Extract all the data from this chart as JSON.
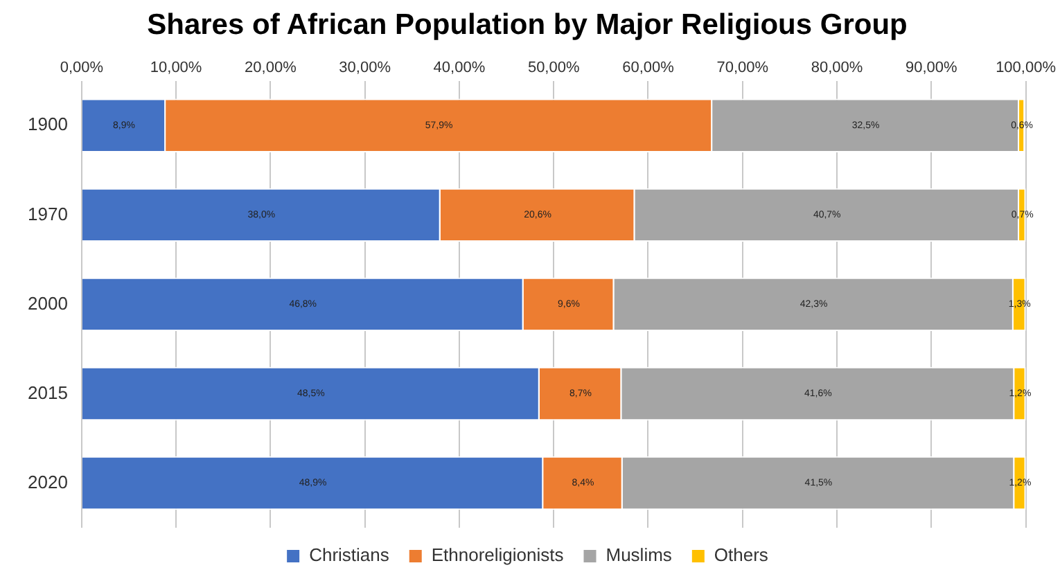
{
  "chart_data": {
    "type": "bar",
    "title": "Shares of African Population by Major Religious Group",
    "orientation": "horizontal",
    "stacked": true,
    "categories": [
      "1900",
      "1970",
      "2000",
      "2015",
      "2020"
    ],
    "series": [
      {
        "name": "Christians",
        "color": "#4472c4",
        "values": [
          8.9,
          38.0,
          46.8,
          48.5,
          48.9
        ],
        "value_labels": [
          "8,9%",
          "38,0%",
          "46,8%",
          "48,5%",
          "48,9%"
        ]
      },
      {
        "name": "Ethnoreligionists",
        "color": "#ed7d31",
        "values": [
          57.9,
          20.6,
          9.6,
          8.7,
          8.4
        ],
        "value_labels": [
          "57,9%",
          "20,6%",
          "9,6%",
          "8,7%",
          "8,4%"
        ]
      },
      {
        "name": "Muslims",
        "color": "#a5a5a5",
        "values": [
          32.5,
          40.7,
          42.3,
          41.6,
          41.5
        ],
        "value_labels": [
          "32,5%",
          "40,7%",
          "42,3%",
          "41,6%",
          "41,5%"
        ]
      },
      {
        "name": "Others",
        "color": "#ffc000",
        "values": [
          0.6,
          0.7,
          1.3,
          1.2,
          1.2
        ],
        "value_labels": [
          "0,6%",
          "0,7%",
          "1,3%",
          "1,2%",
          "1,2%"
        ]
      }
    ],
    "xlim": [
      0,
      100
    ],
    "xticks": [
      {
        "value": 0,
        "label": "0,00%"
      },
      {
        "value": 10,
        "label": "10,00%"
      },
      {
        "value": 20,
        "label": "20,00%"
      },
      {
        "value": 30,
        "label": "30,00%"
      },
      {
        "value": 40,
        "label": "40,00%"
      },
      {
        "value": 50,
        "label": "50,00%"
      },
      {
        "value": 60,
        "label": "60,00%"
      },
      {
        "value": 70,
        "label": "70,00%"
      },
      {
        "value": 80,
        "label": "80,00%"
      },
      {
        "value": 90,
        "label": "90,00%"
      },
      {
        "value": 100,
        "label": "100,00%"
      }
    ],
    "grid": "x",
    "legend": "bottom"
  }
}
